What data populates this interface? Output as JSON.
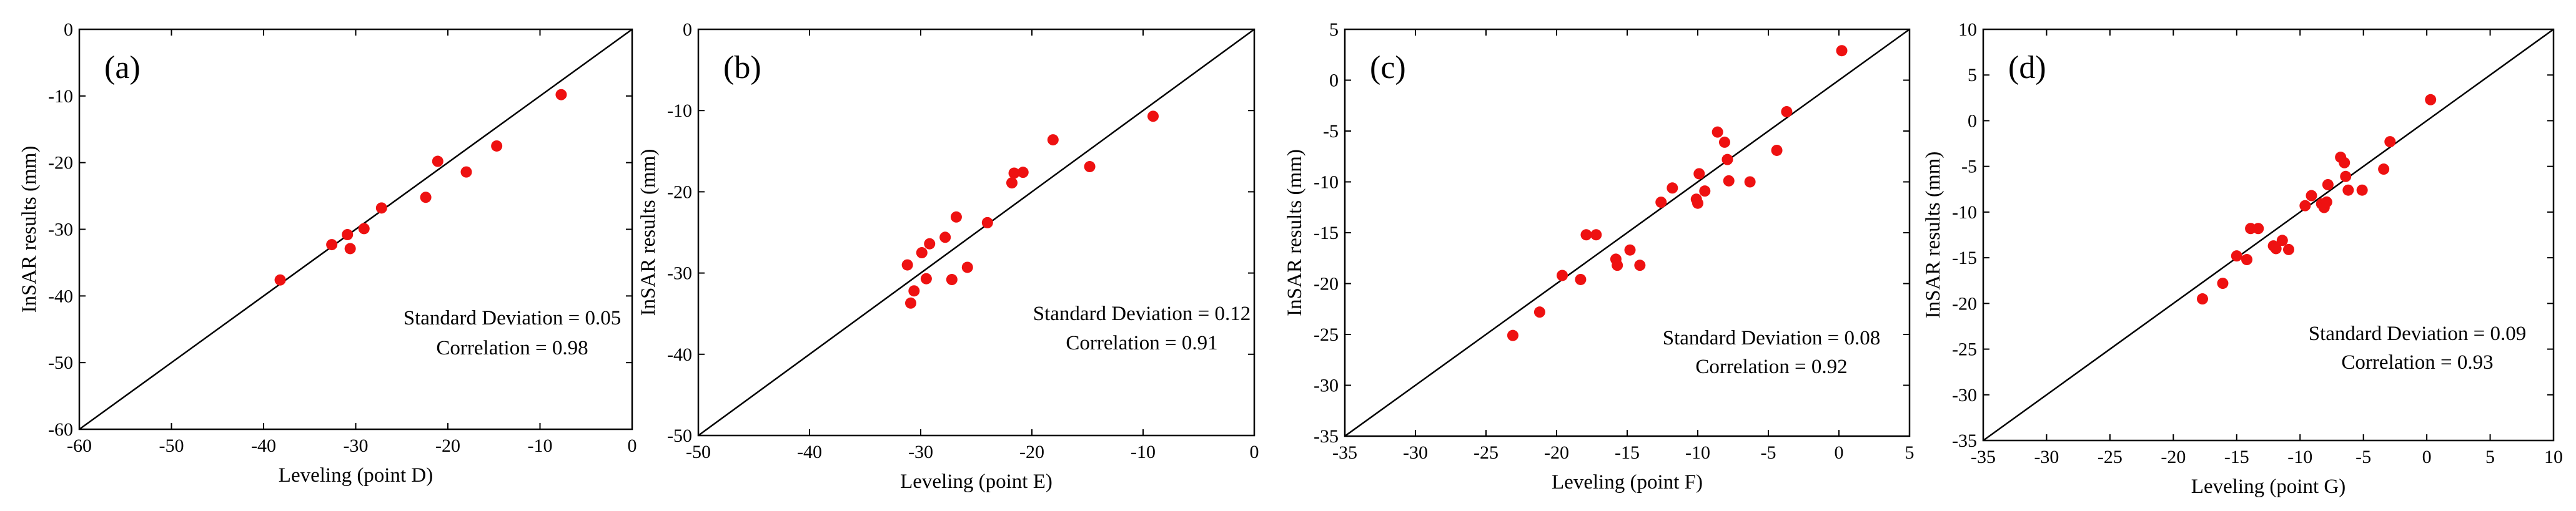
{
  "colors": {
    "point": "#ee1111",
    "axis": "#000000",
    "background": "#ffffff"
  },
  "chart_data": [
    {
      "type": "scatter",
      "panel_label": "(a)",
      "xlabel": "Leveling (point D)",
      "ylabel": "InSAR results (mm)",
      "xlim": [
        -60,
        0
      ],
      "ylim": [
        -60,
        0
      ],
      "xticks": [
        -60,
        -50,
        -40,
        -30,
        -20,
        -10,
        0
      ],
      "yticks": [
        -60,
        -50,
        -40,
        -30,
        -20,
        -10,
        0
      ],
      "reference_line": "y = x",
      "stats": [
        "Standard Deviation = 0.05",
        "Correlation = 0.98"
      ],
      "points": [
        {
          "x": -38.2,
          "y": -37.6
        },
        {
          "x": -32.6,
          "y": -32.3
        },
        {
          "x": -30.9,
          "y": -30.8
        },
        {
          "x": -30.6,
          "y": -32.9
        },
        {
          "x": -29.1,
          "y": -29.9
        },
        {
          "x": -27.2,
          "y": -26.8
        },
        {
          "x": -22.4,
          "y": -25.2
        },
        {
          "x": -21.1,
          "y": -19.8
        },
        {
          "x": -18.0,
          "y": -21.4
        },
        {
          "x": -14.7,
          "y": -17.5
        },
        {
          "x": -7.7,
          "y": -9.8
        }
      ]
    },
    {
      "type": "scatter",
      "panel_label": "(b)",
      "xlabel": "Leveling (point E)",
      "ylabel": "InSAR results (mm)",
      "xlim": [
        -50,
        0
      ],
      "ylim": [
        -50,
        0
      ],
      "xticks": [
        -50,
        -40,
        -30,
        -20,
        -10,
        0
      ],
      "yticks": [
        -50,
        -40,
        -30,
        -20,
        -10,
        0
      ],
      "reference_line": "y = x",
      "stats": [
        "Standard Deviation = 0.12",
        "Correlation = 0.91"
      ],
      "points": [
        {
          "x": -30.9,
          "y": -33.7
        },
        {
          "x": -30.6,
          "y": -32.2
        },
        {
          "x": -31.2,
          "y": -29.0
        },
        {
          "x": -29.9,
          "y": -27.5
        },
        {
          "x": -29.2,
          "y": -26.4
        },
        {
          "x": -29.5,
          "y": -30.7
        },
        {
          "x": -27.8,
          "y": -25.6
        },
        {
          "x": -27.2,
          "y": -30.8
        },
        {
          "x": -26.8,
          "y": -23.1
        },
        {
          "x": -25.8,
          "y": -29.3
        },
        {
          "x": -24.0,
          "y": -23.8
        },
        {
          "x": -21.8,
          "y": -18.9
        },
        {
          "x": -21.6,
          "y": -17.7
        },
        {
          "x": -20.8,
          "y": -17.6
        },
        {
          "x": -18.1,
          "y": -13.6
        },
        {
          "x": -14.8,
          "y": -16.9
        },
        {
          "x": -9.1,
          "y": -10.7
        }
      ]
    },
    {
      "type": "scatter",
      "panel_label": "(c)",
      "xlabel": "Leveling (point F)",
      "ylabel": "InSAR results (mm)",
      "xlim": [
        -35,
        5
      ],
      "ylim": [
        -35,
        5
      ],
      "xticks": [
        -35,
        -30,
        -25,
        -20,
        -15,
        -10,
        -5,
        0,
        5
      ],
      "yticks": [
        -35,
        -30,
        -25,
        -20,
        -15,
        -10,
        -5,
        0,
        5
      ],
      "reference_line": "y = x",
      "stats": [
        "Standard Deviation = 0.08",
        "Correlation = 0.92"
      ],
      "points": [
        {
          "x": -23.1,
          "y": -25.1
        },
        {
          "x": -21.2,
          "y": -22.8
        },
        {
          "x": -19.6,
          "y": -19.2
        },
        {
          "x": -18.3,
          "y": -19.6
        },
        {
          "x": -17.9,
          "y": -15.2
        },
        {
          "x": -17.2,
          "y": -15.2
        },
        {
          "x": -15.8,
          "y": -17.6
        },
        {
          "x": -15.7,
          "y": -18.2
        },
        {
          "x": -14.8,
          "y": -16.7
        },
        {
          "x": -14.1,
          "y": -18.2
        },
        {
          "x": -12.6,
          "y": -12.0
        },
        {
          "x": -11.8,
          "y": -10.6
        },
        {
          "x": -10.1,
          "y": -11.7
        },
        {
          "x": -10.0,
          "y": -12.1
        },
        {
          "x": -9.9,
          "y": -9.2
        },
        {
          "x": -9.5,
          "y": -10.9
        },
        {
          "x": -8.6,
          "y": -5.1
        },
        {
          "x": -8.1,
          "y": -6.1
        },
        {
          "x": -7.9,
          "y": -7.8
        },
        {
          "x": -7.8,
          "y": -9.9
        },
        {
          "x": -6.3,
          "y": -10.0
        },
        {
          "x": -4.4,
          "y": -6.9
        },
        {
          "x": -3.7,
          "y": -3.1
        },
        {
          "x": 0.2,
          "y": 2.9
        }
      ]
    },
    {
      "type": "scatter",
      "panel_label": "(d)",
      "xlabel": "Leveling (point G)",
      "ylabel": "InSAR results (mm)",
      "xlim": [
        -35,
        10
      ],
      "ylim": [
        -35,
        10
      ],
      "xticks": [
        -35,
        -30,
        -25,
        -20,
        -15,
        -10,
        -5,
        0,
        5,
        10
      ],
      "yticks": [
        -35,
        -30,
        -25,
        -20,
        -15,
        -10,
        -5,
        0,
        5,
        10
      ],
      "reference_line": "y = x",
      "stats": [
        "Standard Deviation = 0.09",
        "Correlation = 0.93"
      ],
      "points": [
        {
          "x": -17.7,
          "y": -19.5
        },
        {
          "x": -16.1,
          "y": -17.8
        },
        {
          "x": -15.0,
          "y": -14.8
        },
        {
          "x": -14.2,
          "y": -15.2
        },
        {
          "x": -13.9,
          "y": -11.8
        },
        {
          "x": -13.3,
          "y": -11.8
        },
        {
          "x": -12.1,
          "y": -13.7
        },
        {
          "x": -11.9,
          "y": -14.0
        },
        {
          "x": -11.4,
          "y": -13.1
        },
        {
          "x": -10.9,
          "y": -14.1
        },
        {
          "x": -9.6,
          "y": -9.3
        },
        {
          "x": -9.1,
          "y": -8.2
        },
        {
          "x": -8.3,
          "y": -9.1
        },
        {
          "x": -8.1,
          "y": -9.5
        },
        {
          "x": -7.9,
          "y": -8.9
        },
        {
          "x": -7.8,
          "y": -7.0
        },
        {
          "x": -6.8,
          "y": -4.0
        },
        {
          "x": -6.5,
          "y": -4.6
        },
        {
          "x": -6.4,
          "y": -6.1
        },
        {
          "x": -6.2,
          "y": -7.6
        },
        {
          "x": -5.1,
          "y": -7.6
        },
        {
          "x": -3.4,
          "y": -5.3
        },
        {
          "x": -2.9,
          "y": -2.3
        },
        {
          "x": 0.3,
          "y": 2.3
        }
      ]
    }
  ]
}
